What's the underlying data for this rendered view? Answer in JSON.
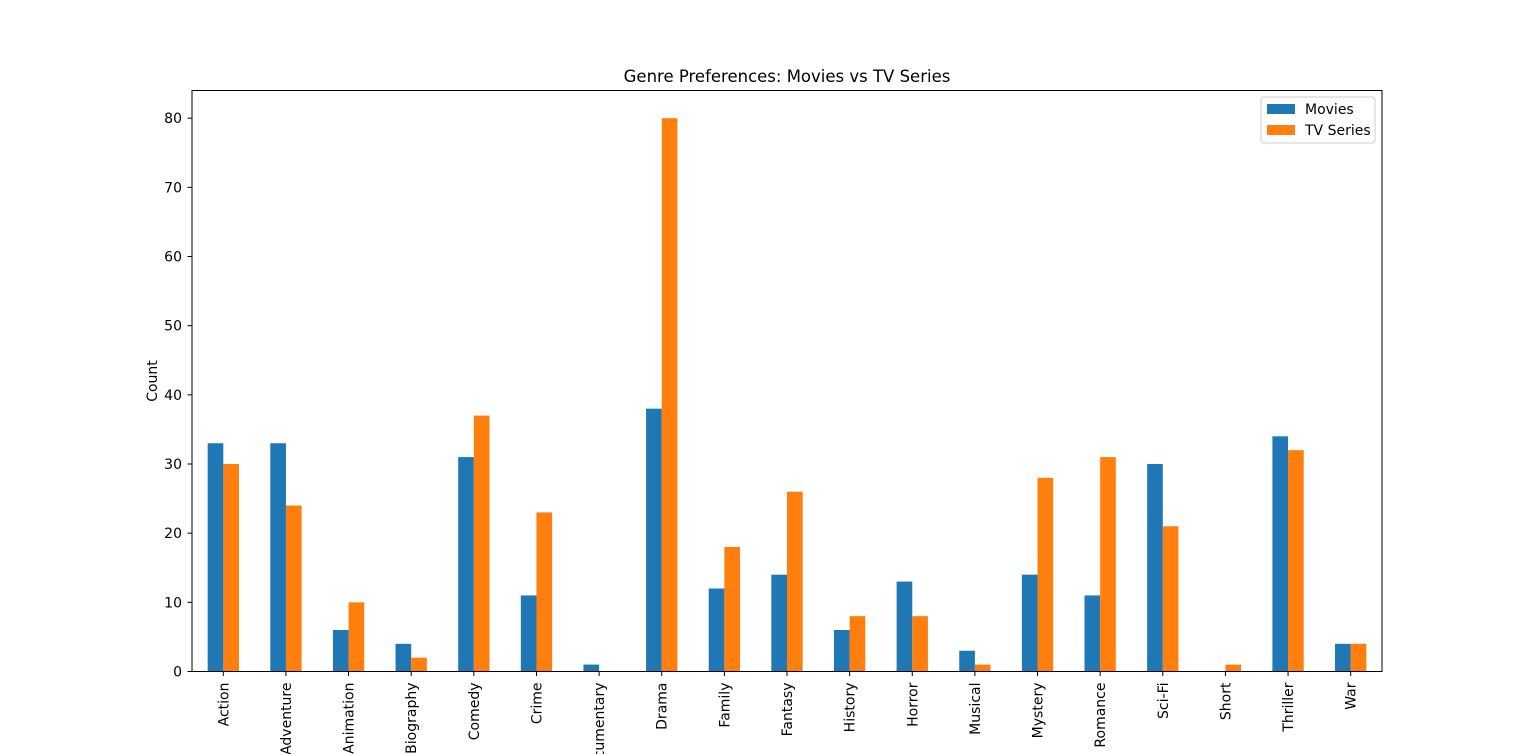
{
  "chart_data": {
    "type": "bar",
    "title": "Genre Preferences: Movies vs TV Series",
    "xlabel": "",
    "ylabel": "Count",
    "ylim": [
      0,
      84
    ],
    "yticks": [
      0,
      10,
      20,
      30,
      40,
      50,
      60,
      70,
      80
    ],
    "grid": false,
    "legend_position": "top-right",
    "categories": [
      "Action",
      "Adventure",
      "Animation",
      "Biography",
      "Comedy",
      "Crime",
      "Documentary",
      "Drama",
      "Family",
      "Fantasy",
      "History",
      "Horror",
      "Musical",
      "Mystery",
      "Romance",
      "Sci-Fi",
      "Short",
      "Thriller",
      "War"
    ],
    "series": [
      {
        "name": "Movies",
        "color": "#1f77b4",
        "values": [
          33,
          33,
          6,
          4,
          31,
          11,
          1,
          38,
          12,
          14,
          6,
          13,
          3,
          14,
          11,
          30,
          0,
          34,
          4
        ]
      },
      {
        "name": "TV Series",
        "color": "#ff7f0e",
        "values": [
          30,
          24,
          10,
          2,
          37,
          23,
          0,
          80,
          18,
          26,
          8,
          8,
          1,
          28,
          31,
          21,
          1,
          32,
          4
        ]
      }
    ]
  }
}
